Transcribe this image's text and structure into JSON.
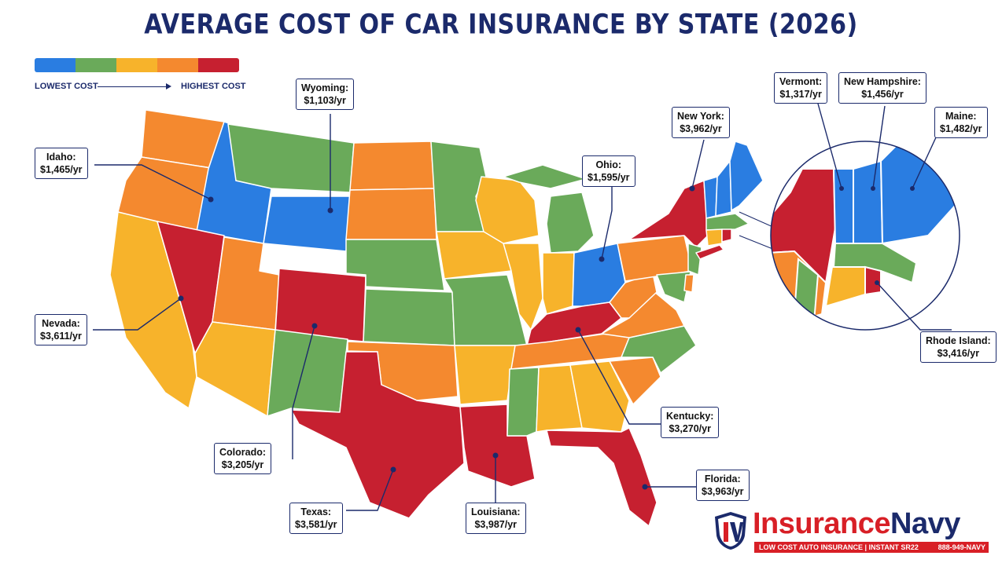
{
  "title": "AVERAGE COST OF CAR INSURANCE BY STATE (2026)",
  "legend": {
    "low_label": "LOWEST COST",
    "high_label": "HIGHEST COST",
    "colors": [
      "#2a7de1",
      "#6aaa5a",
      "#f7b32b",
      "#f4892f",
      "#c62030"
    ]
  },
  "palette": {
    "blue": "#2a7de1",
    "green": "#6aaa5a",
    "yellow": "#f7b32b",
    "orange": "#f4892f",
    "red": "#c62030",
    "outline": "#1b2a6b"
  },
  "states": [
    {
      "name": "Washington",
      "tier": "orange"
    },
    {
      "name": "Oregon",
      "tier": "orange"
    },
    {
      "name": "California",
      "tier": "yellow"
    },
    {
      "name": "Idaho",
      "tier": "blue"
    },
    {
      "name": "Nevada",
      "tier": "red"
    },
    {
      "name": "Montana",
      "tier": "green"
    },
    {
      "name": "Wyoming",
      "tier": "blue"
    },
    {
      "name": "Utah",
      "tier": "orange"
    },
    {
      "name": "Colorado",
      "tier": "red"
    },
    {
      "name": "Arizona",
      "tier": "yellow"
    },
    {
      "name": "New Mexico",
      "tier": "green"
    },
    {
      "name": "North Dakota",
      "tier": "orange"
    },
    {
      "name": "South Dakota",
      "tier": "orange"
    },
    {
      "name": "Nebraska",
      "tier": "green"
    },
    {
      "name": "Kansas",
      "tier": "green"
    },
    {
      "name": "Oklahoma",
      "tier": "orange"
    },
    {
      "name": "Texas",
      "tier": "red"
    },
    {
      "name": "Minnesota",
      "tier": "green"
    },
    {
      "name": "Iowa",
      "tier": "yellow"
    },
    {
      "name": "Missouri",
      "tier": "green"
    },
    {
      "name": "Arkansas",
      "tier": "yellow"
    },
    {
      "name": "Louisiana",
      "tier": "red"
    },
    {
      "name": "Wisconsin",
      "tier": "yellow"
    },
    {
      "name": "Illinois",
      "tier": "yellow"
    },
    {
      "name": "Michigan",
      "tier": "green"
    },
    {
      "name": "Indiana",
      "tier": "yellow"
    },
    {
      "name": "Ohio",
      "tier": "blue"
    },
    {
      "name": "Kentucky",
      "tier": "red"
    },
    {
      "name": "Tennessee",
      "tier": "orange"
    },
    {
      "name": "Mississippi",
      "tier": "green"
    },
    {
      "name": "Alabama",
      "tier": "yellow"
    },
    {
      "name": "Georgia",
      "tier": "yellow"
    },
    {
      "name": "Florida",
      "tier": "red"
    },
    {
      "name": "South Carolina",
      "tier": "orange"
    },
    {
      "name": "North Carolina",
      "tier": "green"
    },
    {
      "name": "Virginia",
      "tier": "orange"
    },
    {
      "name": "West Virginia",
      "tier": "orange"
    },
    {
      "name": "Pennsylvania",
      "tier": "orange"
    },
    {
      "name": "New York",
      "tier": "red"
    },
    {
      "name": "Vermont",
      "tier": "blue"
    },
    {
      "name": "New Hampshire",
      "tier": "blue"
    },
    {
      "name": "Maine",
      "tier": "blue"
    },
    {
      "name": "Massachusetts",
      "tier": "green"
    },
    {
      "name": "Connecticut",
      "tier": "yellow"
    },
    {
      "name": "Rhode Island",
      "tier": "red"
    },
    {
      "name": "New Jersey",
      "tier": "green"
    },
    {
      "name": "Maryland",
      "tier": "green"
    },
    {
      "name": "Delaware",
      "tier": "orange"
    }
  ],
  "callouts": {
    "wyoming": {
      "state": "Wyoming:",
      "cost": "$1,103/yr"
    },
    "idaho": {
      "state": "Idaho:",
      "cost": "$1,465/yr"
    },
    "nevada": {
      "state": "Nevada:",
      "cost": "$3,611/yr"
    },
    "colorado": {
      "state": "Colorado:",
      "cost": "$3,205/yr"
    },
    "texas": {
      "state": "Texas:",
      "cost": "$3,581/yr"
    },
    "louisiana": {
      "state": "Louisiana:",
      "cost": "$3,987/yr"
    },
    "ohio": {
      "state": "Ohio:",
      "cost": "$1,595/yr"
    },
    "new_york": {
      "state": "New York:",
      "cost": "$3,962/yr"
    },
    "kentucky": {
      "state": "Kentucky:",
      "cost": "$3,270/yr"
    },
    "florida": {
      "state": "Florida:",
      "cost": "$3,963/yr"
    },
    "vermont": {
      "state": "Vermont:",
      "cost": "$1,317/yr"
    },
    "new_hampshire": {
      "state": "New Hampshire:",
      "cost": "$1,456/yr"
    },
    "maine": {
      "state": "Maine:",
      "cost": "$1,482/yr"
    },
    "rhode_island": {
      "state": "Rhode Island:",
      "cost": "$3,416/yr"
    }
  },
  "logo": {
    "brand_part1": "Insurance",
    "brand_part2": "Navy",
    "tagline": "LOW COST AUTO INSURANCE | INSTANT SR22",
    "phone": "888-949-NAVY"
  }
}
